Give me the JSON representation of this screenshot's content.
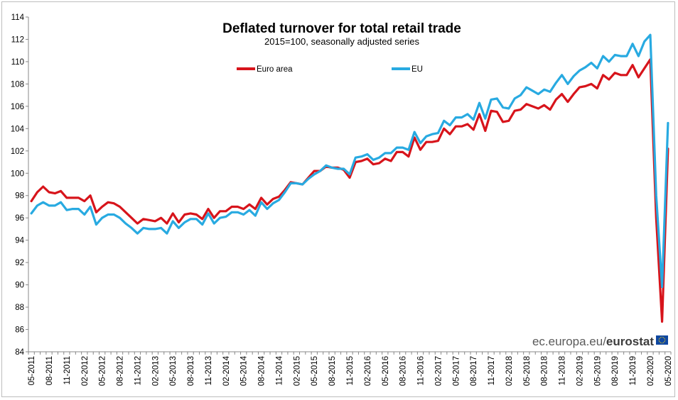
{
  "chart_data": {
    "type": "line",
    "title": "Deflated turnover for total retail trade",
    "subtitle": "2015=100, seasonally adjusted series",
    "xlabel": "",
    "ylabel": "",
    "ylim": [
      84,
      114
    ],
    "yticks": [
      "84",
      "86",
      "88",
      "90",
      "92",
      "94",
      "96",
      "98",
      "100",
      "102",
      "104",
      "106",
      "108",
      "110",
      "112",
      "114"
    ],
    "xtick_labels": [
      "05-2011",
      "08-2011",
      "11-2011",
      "02-2012",
      "05-2012",
      "08-2012",
      "11-2012",
      "02-2013",
      "05-2013",
      "08-2013",
      "11-2013",
      "02-2014",
      "05-2014",
      "08-2014",
      "11-2014",
      "02-2015",
      "05-2015",
      "08-2015",
      "11-2015",
      "02-2016",
      "05-2016",
      "08-2016",
      "11-2016",
      "02-2017",
      "05-2017",
      "08-2017",
      "11-2017",
      "02-2018",
      "05-2018",
      "08-2018",
      "11-2018",
      "02-2019",
      "05-2019",
      "08-2019",
      "11-2019",
      "02-2020",
      "05-2020"
    ],
    "x_start": "05-2011",
    "x_end": "05-2020",
    "grid": false,
    "legend_position": "top",
    "series": [
      {
        "name": "Euro area",
        "color": "#d7141b",
        "values": [
          97.5,
          98.3,
          98.8,
          98.3,
          98.2,
          98.4,
          97.8,
          97.8,
          97.8,
          97.5,
          98.0,
          96.5,
          97.0,
          97.4,
          97.3,
          97.0,
          96.5,
          96.0,
          95.5,
          95.9,
          95.8,
          95.7,
          96.0,
          95.5,
          96.4,
          95.6,
          96.3,
          96.4,
          96.3,
          95.9,
          96.8,
          96.0,
          96.6,
          96.6,
          97.0,
          97.0,
          96.8,
          97.2,
          96.8,
          97.8,
          97.2,
          97.7,
          97.9,
          98.5,
          99.2,
          99.1,
          99.0,
          99.6,
          100.2,
          100.2,
          100.6,
          100.5,
          100.5,
          100.3,
          99.6,
          101.0,
          101.1,
          101.3,
          100.8,
          100.9,
          101.3,
          101.1,
          101.9,
          101.9,
          101.5,
          103.2,
          102.1,
          102.8,
          102.8,
          102.9,
          104.0,
          103.5,
          104.2,
          104.2,
          104.4,
          103.9,
          105.3,
          103.8,
          105.6,
          105.5,
          104.6,
          104.7,
          105.6,
          105.7,
          106.2,
          106.0,
          105.8,
          106.1,
          105.7,
          106.6,
          107.1,
          106.4,
          107.1,
          107.7,
          107.8,
          108.0,
          107.6,
          108.8,
          108.4,
          109.0,
          108.8,
          108.8,
          109.7,
          108.6,
          109.4,
          110.2,
          96.0,
          86.7,
          102.2
        ]
      },
      {
        "name": "EU",
        "color": "#28aae1",
        "values": [
          96.4,
          97.1,
          97.4,
          97.1,
          97.1,
          97.4,
          96.7,
          96.8,
          96.8,
          96.3,
          97.0,
          95.4,
          96.0,
          96.3,
          96.3,
          96.0,
          95.5,
          95.1,
          94.6,
          95.1,
          95.0,
          95.0,
          95.1,
          94.6,
          95.7,
          95.1,
          95.6,
          95.9,
          95.9,
          95.4,
          96.4,
          95.5,
          96.0,
          96.1,
          96.5,
          96.5,
          96.3,
          96.7,
          96.2,
          97.4,
          96.8,
          97.3,
          97.6,
          98.3,
          99.1,
          99.1,
          99.0,
          99.5,
          99.9,
          100.2,
          100.7,
          100.5,
          100.4,
          100.4,
          99.9,
          101.4,
          101.5,
          101.7,
          101.2,
          101.4,
          101.8,
          101.8,
          102.3,
          102.3,
          102.1,
          103.7,
          102.7,
          103.3,
          103.5,
          103.6,
          104.7,
          104.3,
          105.0,
          105.0,
          105.3,
          104.8,
          106.3,
          104.9,
          106.6,
          106.7,
          105.9,
          105.8,
          106.7,
          107.0,
          107.7,
          107.4,
          107.1,
          107.5,
          107.3,
          108.1,
          108.8,
          108.0,
          108.7,
          109.2,
          109.5,
          109.9,
          109.4,
          110.5,
          110.0,
          110.6,
          110.5,
          110.5,
          111.6,
          110.5,
          111.8,
          112.4,
          98.0,
          89.8,
          104.5
        ]
      }
    ]
  },
  "credit": {
    "prefix": "ec.europa.eu/",
    "brand": "eurostat",
    "flag_color": "#0e47a1",
    "star_color": "#ffd617"
  }
}
